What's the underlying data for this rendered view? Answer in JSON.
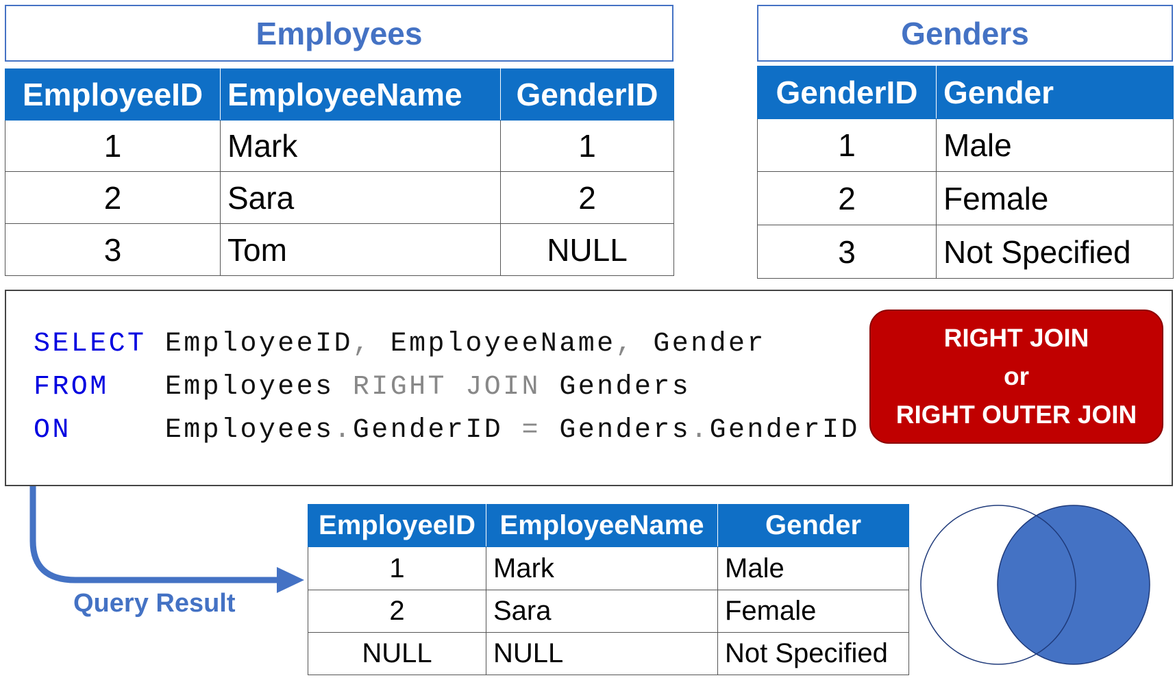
{
  "employees": {
    "title": "Employees",
    "columns": [
      "EmployeeID",
      "EmployeeName",
      "GenderID"
    ],
    "rows": [
      [
        "1",
        "Mark",
        "1"
      ],
      [
        "2",
        "Sara",
        "2"
      ],
      [
        "3",
        "Tom",
        "NULL"
      ]
    ]
  },
  "genders": {
    "title": "Genders",
    "columns": [
      "GenderID",
      "Gender"
    ],
    "rows": [
      [
        "1",
        "Male"
      ],
      [
        "2",
        "Female"
      ],
      [
        "3",
        "Not Specified"
      ]
    ]
  },
  "query": {
    "line1": {
      "keyword": "SELECT",
      "a": "EmployeeID",
      "sep1": ",",
      "b": "EmployeeName",
      "sep2": ",",
      "c": "Gender"
    },
    "line2": {
      "keyword": "FROM",
      "a": "Employees",
      "join": "RIGHT JOIN",
      "b": "Genders"
    },
    "line3": {
      "keyword": "ON",
      "a": "Employees",
      "dot1": ".",
      "b": "GenderID",
      "eq": "=",
      "c": "Genders",
      "dot2": ".",
      "d": "GenderID"
    }
  },
  "badge": {
    "line1": "RIGHT JOIN",
    "line2": "or",
    "line3": "RIGHT OUTER JOIN"
  },
  "result_label": "Query Result",
  "result": {
    "columns": [
      "EmployeeID",
      "EmployeeName",
      "Gender"
    ],
    "rows": [
      [
        "1",
        "Mark",
        "Male"
      ],
      [
        "2",
        "Sara",
        "Female"
      ],
      [
        "NULL",
        "NULL",
        "Not Specified"
      ]
    ]
  },
  "colors": {
    "header_blue": "#0f6fc6",
    "title_blue": "#4472c4",
    "badge_red": "#c00000",
    "venn_fill": "#4472c4"
  },
  "venn": {
    "highlighted": "right"
  }
}
